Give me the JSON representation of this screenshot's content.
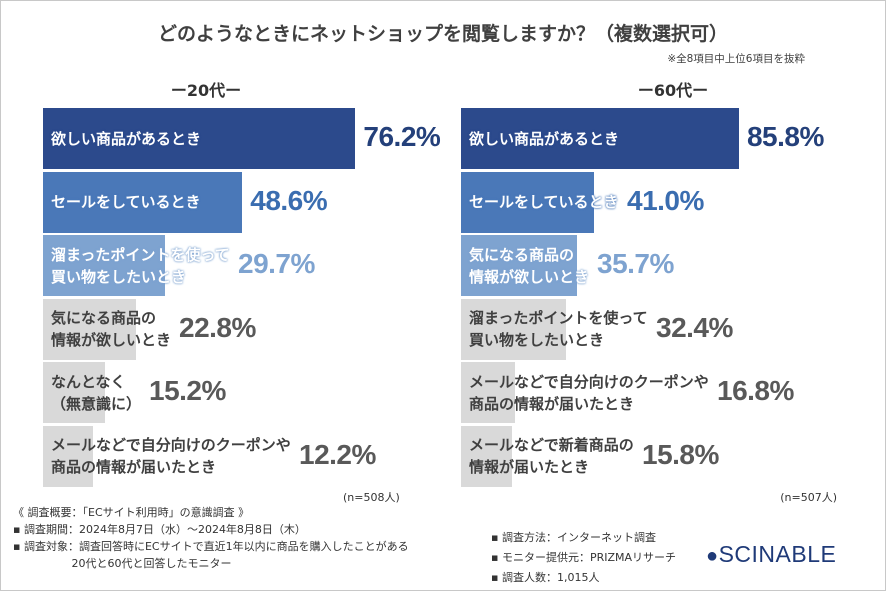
{
  "title": "どのようなときにネットショップを閲覧しますか？（複数選択可）",
  "subtitle": "※全8項目中上位6項目を抜粋",
  "chart_data": [
    {
      "type": "bar",
      "orientation": "horizontal",
      "title": "ー20代ー",
      "categories": [
        "欲しい商品があるとき",
        "セールをしているとき",
        "溜まったポイントを使って\n買い物をしたいとき",
        "気になる商品の\n情報が欲しいとき",
        "なんとなく\n（無意識に）",
        "メールなどで自分向けのクーポンや\n商品の情報が届いたとき"
      ],
      "values": [
        76.2,
        48.6,
        29.7,
        22.8,
        15.2,
        12.2
      ],
      "value_labels": [
        "76.2%",
        "48.6%",
        "29.7%",
        "22.8%",
        "15.2%",
        "12.2%"
      ],
      "colors": [
        "#2c4a8c",
        "#4a78b8",
        "#7ea3d0",
        "#d9d9d9",
        "#d9d9d9",
        "#d9d9d9"
      ],
      "label_colors": [
        "#24407a",
        "#3a6db0",
        "#7ea3d0",
        "#595959",
        "#595959",
        "#595959"
      ],
      "xlim": [
        0,
        100
      ],
      "note": "(n=508人)"
    },
    {
      "type": "bar",
      "orientation": "horizontal",
      "title": "ー60代ー",
      "categories": [
        "欲しい商品があるとき",
        "セールをしているとき",
        "気になる商品の\n情報が欲しいとき",
        "溜まったポイントを使って\n買い物をしたいとき",
        "メールなどで自分向けのクーポンや\n商品の情報が届いたとき",
        "メールなどで新着商品の\n情報が届いたとき"
      ],
      "values": [
        85.8,
        41.0,
        35.7,
        32.4,
        16.8,
        15.8
      ],
      "value_labels": [
        "85.8%",
        "41.0%",
        "35.7%",
        "32.4%",
        "16.8%",
        "15.8%"
      ],
      "colors": [
        "#2c4a8c",
        "#4a78b8",
        "#7ea3d0",
        "#d9d9d9",
        "#d9d9d9",
        "#d9d9d9"
      ],
      "label_colors": [
        "#24407a",
        "#3a6db0",
        "#7ea3d0",
        "#595959",
        "#595959",
        "#595959"
      ],
      "xlim": [
        0,
        100
      ],
      "note": "(n=507人)"
    }
  ],
  "footnotes_left": [
    "《 調査概要：「ECサイト利用時」の意識調査 》",
    "▪ 調査期間：2024年8月7日（水）～2024年8月8日（木）",
    "▪ 調査対象：調査回答時にECサイトで直近1年以内に商品を購入したことがある\n　　　　　 20代と60代と回答したモニター"
  ],
  "footnotes_right": [
    "▪ 調査方法：インターネット調査",
    "▪ モニター提供元：PRIZMAリサーチ",
    "▪ 調査人数：1,015人"
  ],
  "logo": "SCINABLE"
}
